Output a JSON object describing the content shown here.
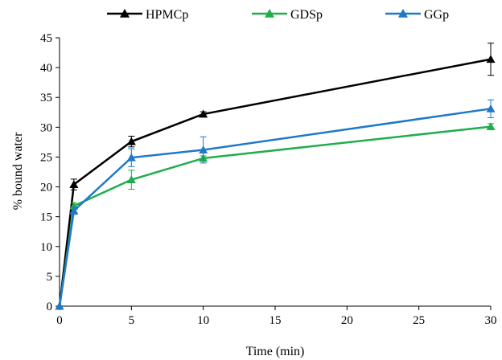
{
  "chart_data": {
    "type": "line",
    "xlabel": "Time (min)",
    "ylabel": "% bound water",
    "xlim": [
      0,
      30
    ],
    "ylim": [
      0,
      45
    ],
    "x_ticks": [
      0,
      5,
      10,
      15,
      20,
      25,
      30
    ],
    "y_ticks": [
      0,
      5,
      10,
      15,
      20,
      25,
      30,
      35,
      40,
      45
    ],
    "grid": false,
    "legend_position": "top",
    "series": [
      {
        "name": "HPMCp",
        "color": "#000000",
        "marker": "triangle",
        "x": [
          0,
          1,
          5,
          10,
          30
        ],
        "y": [
          0,
          20.4,
          27.6,
          32.2,
          41.4
        ],
        "error": [
          0,
          0.9,
          0.9,
          0.4,
          2.7
        ]
      },
      {
        "name": "GDSp",
        "color": "#1fae4b",
        "marker": "triangle",
        "x": [
          0,
          1,
          5,
          10,
          30
        ],
        "y": [
          0,
          16.8,
          21.2,
          24.8,
          30.1
        ],
        "error": [
          0,
          0.5,
          1.6,
          0.4,
          0.5
        ]
      },
      {
        "name": "GGp",
        "color": "#1f78c8",
        "marker": "triangle",
        "x": [
          0,
          1,
          5,
          10,
          30
        ],
        "y": [
          0,
          16.0,
          24.9,
          26.2,
          33.1
        ],
        "error": [
          0,
          0.6,
          1.5,
          2.2,
          1.5
        ]
      }
    ]
  }
}
